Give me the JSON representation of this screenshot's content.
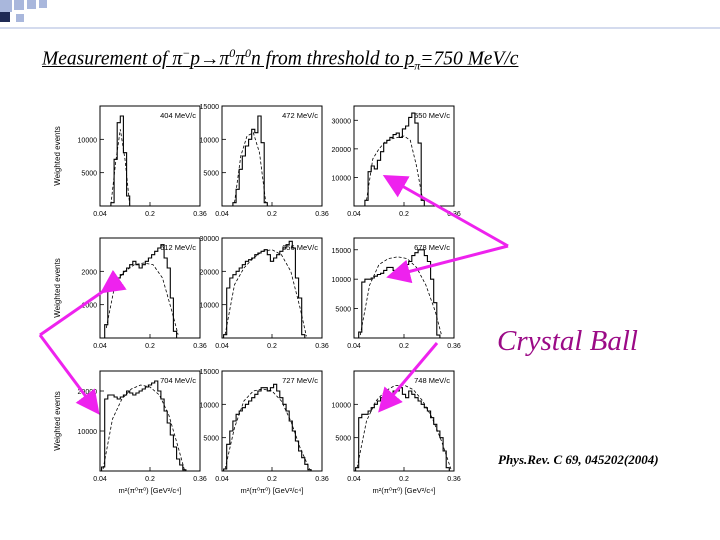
{
  "title": {
    "part1": "Measurement of π",
    "sup1": "−",
    "part2": "p→π",
    "sup2": "0",
    "part3": "π",
    "sup3": "0",
    "part4": "n from threshold to p",
    "sub4": "π",
    "part5": "=750 MeV/c"
  },
  "annotation": "Crystal Ball",
  "reference": "Phys.Rev. C 69, 045202(2004)",
  "colors": {
    "arrow": "#ee22ee",
    "annotation": "#9b0a86",
    "deco_square_dark": "#1f2a55",
    "deco_square_light": "#a9b7dc"
  },
  "chart_data": [
    {
      "type": "line",
      "label": "404 MeV/c",
      "ylabel": "Weighted events",
      "xlabel": "",
      "xlim": [
        0.04,
        0.36
      ],
      "xticks": [
        "0.04",
        "0.2",
        "0.36"
      ],
      "ylim": [
        0,
        15000
      ],
      "yticks": [
        "5000",
        "10000"
      ],
      "series": [
        {
          "style": "histogram",
          "x": [
            0.08,
            0.09,
            0.1,
            0.11,
            0.12,
            0.13
          ],
          "values": [
            500,
            7000,
            12500,
            13500,
            8000,
            1500
          ]
        },
        {
          "style": "dashed",
          "x": [
            0.075,
            0.09,
            0.105,
            0.12,
            0.135
          ],
          "values": [
            200,
            6500,
            11500,
            7000,
            200
          ]
        }
      ]
    },
    {
      "type": "line",
      "label": "472 MeV/c",
      "ylabel": "",
      "xlabel": "",
      "xlim": [
        0.04,
        0.36
      ],
      "xticks": [
        "0.04",
        "0.2",
        "0.36"
      ],
      "ylim": [
        0,
        15000
      ],
      "yticks": [
        "5000",
        "10000",
        "15000"
      ],
      "series": [
        {
          "style": "histogram",
          "x": [
            0.08,
            0.09,
            0.1,
            0.11,
            0.12,
            0.13,
            0.14,
            0.15,
            0.16,
            0.17,
            0.18
          ],
          "values": [
            500,
            2500,
            5500,
            7500,
            9000,
            10000,
            11500,
            11000,
            13500,
            9500,
            500
          ]
        },
        {
          "style": "dashed",
          "x": [
            0.08,
            0.1,
            0.12,
            0.14,
            0.16,
            0.18
          ],
          "values": [
            500,
            7500,
            10500,
            11000,
            8000,
            500
          ]
        }
      ]
    },
    {
      "type": "line",
      "label": "550 MeV/c",
      "ylabel": "",
      "xlabel": "",
      "xlim": [
        0.04,
        0.36
      ],
      "xticks": [
        "0.04",
        "0.2",
        "0.36"
      ],
      "ylim": [
        0,
        35000
      ],
      "yticks": [
        "10000",
        "20000",
        "30000"
      ],
      "series": [
        {
          "style": "histogram",
          "x": [
            0.08,
            0.09,
            0.1,
            0.11,
            0.12,
            0.13,
            0.14,
            0.15,
            0.16,
            0.17,
            0.18,
            0.19,
            0.2,
            0.21,
            0.22,
            0.23,
            0.24,
            0.25,
            0.26
          ],
          "values": [
            2000,
            12000,
            14000,
            13000,
            16000,
            19000,
            22000,
            23000,
            24000,
            25000,
            25500,
            24000,
            27000,
            28000,
            31000,
            32500,
            29000,
            22000,
            2000
          ]
        },
        {
          "style": "dashed",
          "x": [
            0.08,
            0.1,
            0.12,
            0.14,
            0.16,
            0.18,
            0.2,
            0.22,
            0.24,
            0.26
          ],
          "values": [
            2000,
            16500,
            20000,
            22500,
            23500,
            24000,
            24500,
            23000,
            14000,
            2000
          ]
        }
      ]
    },
    {
      "type": "line",
      "label": "612 MeV/c",
      "ylabel": "Weighted events",
      "xlabel": "",
      "xlim": [
        0.04,
        0.36
      ],
      "xticks": [
        "0.04",
        "0.2",
        "0.36"
      ],
      "ylim": [
        0,
        3000
      ],
      "yticks": [
        "1000",
        "2000"
      ],
      "series": [
        {
          "style": "histogram",
          "x": [
            0.06,
            0.07,
            0.08,
            0.09,
            0.1,
            0.11,
            0.12,
            0.13,
            0.14,
            0.15,
            0.16,
            0.17,
            0.18,
            0.19,
            0.2,
            0.21,
            0.22,
            0.23,
            0.24,
            0.25,
            0.26,
            0.27,
            0.28
          ],
          "values": [
            400,
            1700,
            1800,
            1800,
            1800,
            1900,
            2000,
            2100,
            2200,
            2300,
            2200,
            2100,
            2200,
            2300,
            2400,
            2500,
            2600,
            2700,
            2800,
            2400,
            2100,
            1200,
            200
          ]
        },
        {
          "style": "dashed",
          "x": [
            0.06,
            0.09,
            0.12,
            0.15,
            0.18,
            0.21,
            0.24,
            0.27,
            0.29
          ],
          "values": [
            300,
            1700,
            2000,
            2200,
            2250,
            2200,
            1800,
            800,
            100
          ]
        }
      ]
    },
    {
      "type": "line",
      "label": "656 MeV/c",
      "ylabel": "",
      "xlabel": "",
      "xlim": [
        0.04,
        0.36
      ],
      "xticks": [
        "0.04",
        "0.2",
        "0.36"
      ],
      "ylim": [
        0,
        30000
      ],
      "yticks": [
        "10000",
        "20000",
        "30000"
      ],
      "series": [
        {
          "style": "histogram",
          "x": [
            0.05,
            0.06,
            0.07,
            0.08,
            0.09,
            0.1,
            0.11,
            0.12,
            0.13,
            0.14,
            0.15,
            0.16,
            0.17,
            0.18,
            0.19,
            0.2,
            0.21,
            0.22,
            0.23,
            0.24,
            0.25,
            0.26,
            0.27,
            0.28,
            0.29,
            0.3
          ],
          "values": [
            1000,
            15000,
            18000,
            19000,
            20000,
            21000,
            22000,
            23000,
            23500,
            24000,
            25000,
            25500,
            26000,
            26500,
            25000,
            23000,
            24000,
            25000,
            26000,
            27000,
            28000,
            29000,
            27000,
            18000,
            12000,
            1000
          ]
        },
        {
          "style": "dashed",
          "x": [
            0.05,
            0.08,
            0.11,
            0.14,
            0.17,
            0.2,
            0.23,
            0.26,
            0.29,
            0.31
          ],
          "values": [
            1000,
            16000,
            21000,
            24000,
            26000,
            26500,
            25000,
            20000,
            9000,
            500
          ]
        }
      ]
    },
    {
      "type": "line",
      "label": "678 MeV/c",
      "ylabel": "",
      "xlabel": "",
      "xlim": [
        0.04,
        0.36
      ],
      "xticks": [
        "0.04",
        "0.2",
        "0.36"
      ],
      "ylim": [
        0,
        17000
      ],
      "yticks": [
        "5000",
        "10000",
        "15000"
      ],
      "series": [
        {
          "style": "histogram",
          "x": [
            0.06,
            0.07,
            0.08,
            0.09,
            0.1,
            0.11,
            0.12,
            0.13,
            0.14,
            0.15,
            0.16,
            0.17,
            0.18,
            0.19,
            0.2,
            0.21,
            0.22,
            0.23,
            0.24,
            0.25,
            0.26,
            0.27,
            0.28,
            0.29,
            0.3,
            0.31
          ],
          "values": [
            1000,
            9500,
            10000,
            10000,
            10200,
            10500,
            10800,
            11000,
            11500,
            12000,
            12000,
            11500,
            11000,
            11500,
            12000,
            12500,
            13000,
            14000,
            14500,
            15000,
            15000,
            14000,
            13000,
            10000,
            6000,
            500
          ]
        },
        {
          "style": "dashed",
          "x": [
            0.06,
            0.09,
            0.12,
            0.15,
            0.18,
            0.21,
            0.24,
            0.27,
            0.3,
            0.32
          ],
          "values": [
            500,
            9000,
            12500,
            13500,
            13800,
            13500,
            12000,
            9000,
            4500,
            500
          ]
        }
      ]
    },
    {
      "type": "line",
      "label": "704 MeV/c",
      "ylabel": "Weighted events",
      "xlabel": "m²(π⁰π⁰) [GeV²/c⁴]",
      "xlim": [
        0.04,
        0.36
      ],
      "xticks": [
        "0.04",
        "0.2",
        "0.36"
      ],
      "ylim": [
        0,
        25000
      ],
      "yticks": [
        "10000",
        "20000"
      ],
      "series": [
        {
          "style": "histogram",
          "x": [
            0.05,
            0.06,
            0.07,
            0.08,
            0.09,
            0.1,
            0.11,
            0.12,
            0.13,
            0.14,
            0.15,
            0.16,
            0.17,
            0.18,
            0.19,
            0.2,
            0.21,
            0.22,
            0.23,
            0.24,
            0.25,
            0.26,
            0.27,
            0.28,
            0.29,
            0.3,
            0.31
          ],
          "values": [
            1000,
            18000,
            19000,
            19000,
            18500,
            18000,
            18500,
            19000,
            20000,
            19500,
            19000,
            19500,
            20000,
            20500,
            21000,
            21500,
            22000,
            22500,
            20000,
            18000,
            15000,
            12000,
            9000,
            6000,
            3000,
            1500,
            300
          ]
        },
        {
          "style": "dashed",
          "x": [
            0.05,
            0.08,
            0.11,
            0.14,
            0.17,
            0.2,
            0.23,
            0.26,
            0.29,
            0.31
          ],
          "values": [
            500,
            13000,
            18000,
            20500,
            21500,
            21000,
            19000,
            14000,
            6000,
            300
          ]
        }
      ]
    },
    {
      "type": "line",
      "label": "727 MeV/c",
      "ylabel": "",
      "xlabel": "m²(π⁰π⁰) [GeV²/c⁴]",
      "xlim": [
        0.04,
        0.36
      ],
      "xticks": [
        "0.04",
        "0.2",
        "0.36"
      ],
      "ylim": [
        0,
        15000
      ],
      "yticks": [
        "5000",
        "10000",
        "15000"
      ],
      "series": [
        {
          "style": "histogram",
          "x": [
            0.05,
            0.06,
            0.07,
            0.08,
            0.09,
            0.1,
            0.11,
            0.12,
            0.13,
            0.14,
            0.15,
            0.16,
            0.17,
            0.18,
            0.19,
            0.2,
            0.21,
            0.22,
            0.23,
            0.24,
            0.25,
            0.26,
            0.27,
            0.28,
            0.29,
            0.3,
            0.31,
            0.32
          ],
          "values": [
            300,
            4000,
            6000,
            7500,
            8500,
            9000,
            9500,
            10000,
            10500,
            11000,
            11500,
            12000,
            12500,
            12500,
            12000,
            12500,
            13000,
            12000,
            11000,
            10000,
            9000,
            7500,
            6000,
            4500,
            3000,
            2000,
            1000,
            200
          ]
        },
        {
          "style": "dashed",
          "x": [
            0.05,
            0.08,
            0.11,
            0.14,
            0.17,
            0.2,
            0.23,
            0.26,
            0.29,
            0.32
          ],
          "values": [
            300,
            6500,
            10500,
            12000,
            12300,
            12000,
            10500,
            7500,
            3500,
            300
          ]
        }
      ]
    },
    {
      "type": "line",
      "label": "748 MeV/c",
      "ylabel": "",
      "xlabel": "m²(π⁰π⁰) [GeV²/c⁴]",
      "xlim": [
        0.04,
        0.36
      ],
      "xticks": [
        "0.04",
        "0.2",
        "0.36"
      ],
      "ylim": [
        0,
        15000
      ],
      "yticks": [
        "5000",
        "10000"
      ],
      "series": [
        {
          "style": "histogram",
          "x": [
            0.05,
            0.06,
            0.07,
            0.08,
            0.09,
            0.1,
            0.11,
            0.12,
            0.13,
            0.14,
            0.15,
            0.16,
            0.17,
            0.18,
            0.19,
            0.2,
            0.21,
            0.22,
            0.23,
            0.24,
            0.25,
            0.26,
            0.27,
            0.28,
            0.29,
            0.3,
            0.31,
            0.32,
            0.33,
            0.34
          ],
          "values": [
            500,
            8000,
            8500,
            8500,
            9000,
            9500,
            10000,
            10500,
            11000,
            11500,
            11000,
            11500,
            12000,
            12000,
            12500,
            11500,
            11000,
            12000,
            11500,
            11000,
            10500,
            10000,
            9500,
            9000,
            8000,
            7000,
            6000,
            5000,
            3000,
            500
          ]
        },
        {
          "style": "dashed",
          "x": [
            0.05,
            0.08,
            0.11,
            0.14,
            0.17,
            0.2,
            0.23,
            0.26,
            0.29,
            0.32,
            0.35
          ],
          "values": [
            500,
            7500,
            10500,
            12000,
            12800,
            12900,
            12200,
            10500,
            8000,
            4500,
            300
          ]
        }
      ]
    }
  ]
}
